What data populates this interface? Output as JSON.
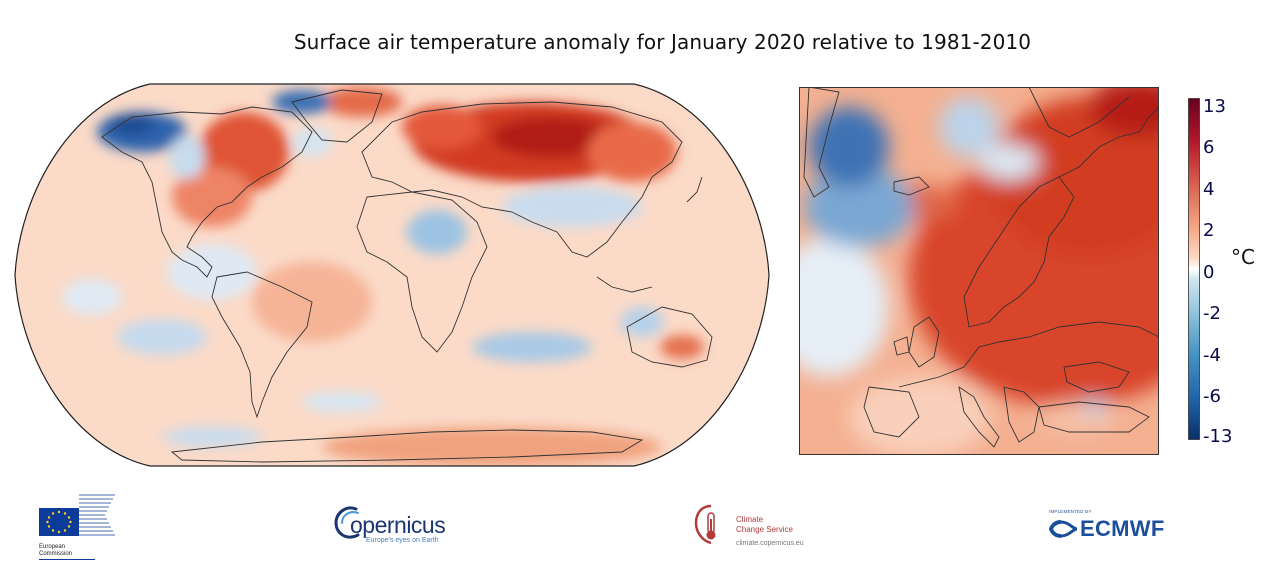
{
  "title": "Surface air temperature anomaly for January 2020 relative to 1981-2010",
  "colorbar": {
    "unit": "°C",
    "ticks": [
      "13",
      "6",
      "4",
      "2",
      "0",
      "-2",
      "-4",
      "-6",
      "-13"
    ],
    "colors": [
      "#08306b",
      "#2166ac",
      "#4393c3",
      "#92c5de",
      "#d1e5f0",
      "#fddbc7",
      "#f4a582",
      "#d6604d",
      "#b2182b",
      "#67001f"
    ]
  },
  "maps": [
    {
      "region": "world",
      "projection": "Robinson"
    },
    {
      "region": "europe"
    }
  ],
  "logos": {
    "eu": {
      "lines": [
        "European",
        "Commission"
      ],
      "flag_color": "#0d3b99",
      "star_color": "#ffd617"
    },
    "copernicus": {
      "word": "opernicus",
      "tagline": "Europe's eyes on Earth"
    },
    "c3s": {
      "name_lines": [
        "Climate",
        "Change Service"
      ],
      "url": "climate.copernicus.eu"
    },
    "ecmwf": {
      "implemented_by": "IMPLEMENTED BY",
      "word": "ECMWF"
    }
  }
}
